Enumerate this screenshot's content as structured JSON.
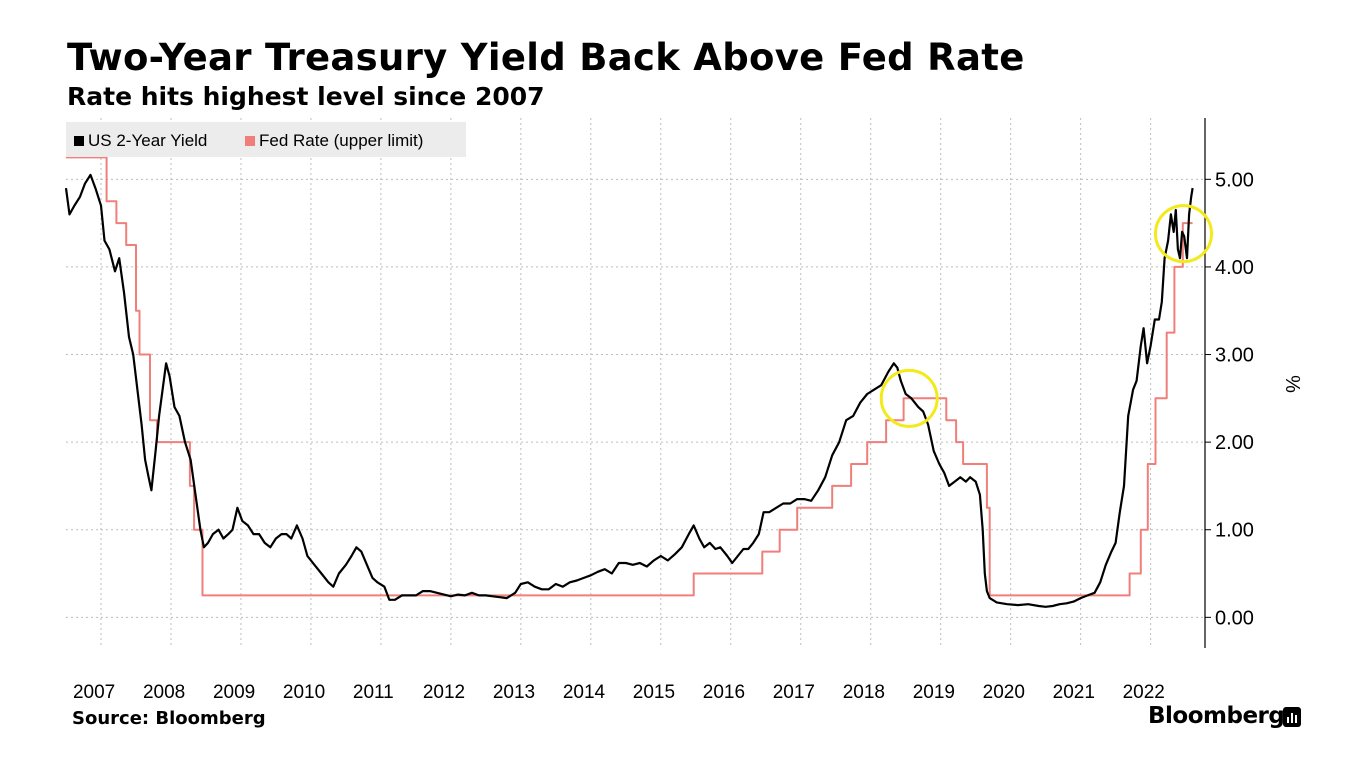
{
  "title": "Two-Year Treasury Yield Back Above Fed Rate",
  "subtitle": "Rate hits highest level since 2007",
  "source": "Source: Bloomberg",
  "brand": "Bloomberg",
  "legend": [
    {
      "name": "US 2-Year Yield",
      "color": "#000000"
    },
    {
      "name": "Fed Rate (upper limit)",
      "color": "#f07f7a"
    }
  ],
  "chart_data": {
    "type": "line",
    "ylabel": "%",
    "ylim": [
      -0.35,
      5.7
    ],
    "xlim": [
      2007.0,
      2022.92
    ],
    "yticks": [
      0,
      1,
      2,
      3,
      4,
      5
    ],
    "ytick_labels": [
      "0.00",
      "1.00",
      "2.00",
      "3.00",
      "4.00",
      "5.00"
    ],
    "xtick_labels": [
      "2007",
      "2008",
      "2009",
      "2010",
      "2011",
      "2012",
      "2013",
      "2014",
      "2015",
      "2016",
      "2017",
      "2018",
      "2019",
      "2020",
      "2021",
      "2022"
    ],
    "grid": true,
    "legend_position": "top-left",
    "series": [
      {
        "name": "US 2-Year Yield",
        "color": "#000000",
        "points": [
          [
            2007.0,
            4.9
          ],
          [
            2007.05,
            4.6
          ],
          [
            2007.12,
            4.7
          ],
          [
            2007.2,
            4.8
          ],
          [
            2007.27,
            4.95
          ],
          [
            2007.35,
            5.05
          ],
          [
            2007.42,
            4.9
          ],
          [
            2007.5,
            4.7
          ],
          [
            2007.55,
            4.3
          ],
          [
            2007.62,
            4.2
          ],
          [
            2007.7,
            3.95
          ],
          [
            2007.76,
            4.1
          ],
          [
            2007.83,
            3.7
          ],
          [
            2007.9,
            3.2
          ],
          [
            2007.96,
            3.0
          ],
          [
            2008.02,
            2.6
          ],
          [
            2008.08,
            2.2
          ],
          [
            2008.13,
            1.8
          ],
          [
            2008.18,
            1.6
          ],
          [
            2008.22,
            1.45
          ],
          [
            2008.28,
            1.9
          ],
          [
            2008.33,
            2.3
          ],
          [
            2008.38,
            2.6
          ],
          [
            2008.43,
            2.9
          ],
          [
            2008.48,
            2.75
          ],
          [
            2008.55,
            2.4
          ],
          [
            2008.62,
            2.3
          ],
          [
            2008.7,
            2.0
          ],
          [
            2008.78,
            1.8
          ],
          [
            2008.85,
            1.4
          ],
          [
            2008.92,
            1.0
          ],
          [
            2008.97,
            0.8
          ],
          [
            2009.03,
            0.85
          ],
          [
            2009.1,
            0.95
          ],
          [
            2009.18,
            1.0
          ],
          [
            2009.25,
            0.9
          ],
          [
            2009.32,
            0.95
          ],
          [
            2009.38,
            1.0
          ],
          [
            2009.45,
            1.25
          ],
          [
            2009.52,
            1.1
          ],
          [
            2009.6,
            1.05
          ],
          [
            2009.68,
            0.95
          ],
          [
            2009.76,
            0.95
          ],
          [
            2009.84,
            0.85
          ],
          [
            2009.92,
            0.8
          ],
          [
            2010.0,
            0.9
          ],
          [
            2010.08,
            0.95
          ],
          [
            2010.15,
            0.95
          ],
          [
            2010.22,
            0.9
          ],
          [
            2010.3,
            1.05
          ],
          [
            2010.38,
            0.9
          ],
          [
            2010.45,
            0.7
          ],
          [
            2010.55,
            0.6
          ],
          [
            2010.65,
            0.5
          ],
          [
            2010.75,
            0.4
          ],
          [
            2010.82,
            0.35
          ],
          [
            2010.9,
            0.5
          ],
          [
            2011.0,
            0.6
          ],
          [
            2011.08,
            0.7
          ],
          [
            2011.15,
            0.8
          ],
          [
            2011.22,
            0.75
          ],
          [
            2011.3,
            0.6
          ],
          [
            2011.38,
            0.45
          ],
          [
            2011.45,
            0.4
          ],
          [
            2011.55,
            0.35
          ],
          [
            2011.62,
            0.2
          ],
          [
            2011.7,
            0.2
          ],
          [
            2011.8,
            0.25
          ],
          [
            2011.9,
            0.25
          ],
          [
            2012.0,
            0.25
          ],
          [
            2012.1,
            0.3
          ],
          [
            2012.2,
            0.3
          ],
          [
            2012.3,
            0.28
          ],
          [
            2012.4,
            0.26
          ],
          [
            2012.5,
            0.24
          ],
          [
            2012.6,
            0.26
          ],
          [
            2012.7,
            0.25
          ],
          [
            2012.8,
            0.28
          ],
          [
            2012.9,
            0.25
          ],
          [
            2013.0,
            0.25
          ],
          [
            2013.1,
            0.24
          ],
          [
            2013.2,
            0.23
          ],
          [
            2013.3,
            0.22
          ],
          [
            2013.42,
            0.28
          ],
          [
            2013.5,
            0.38
          ],
          [
            2013.6,
            0.4
          ],
          [
            2013.7,
            0.35
          ],
          [
            2013.8,
            0.32
          ],
          [
            2013.9,
            0.32
          ],
          [
            2014.0,
            0.38
          ],
          [
            2014.1,
            0.35
          ],
          [
            2014.2,
            0.4
          ],
          [
            2014.3,
            0.42
          ],
          [
            2014.4,
            0.45
          ],
          [
            2014.5,
            0.48
          ],
          [
            2014.6,
            0.52
          ],
          [
            2014.7,
            0.55
          ],
          [
            2014.8,
            0.5
          ],
          [
            2014.9,
            0.62
          ],
          [
            2015.0,
            0.62
          ],
          [
            2015.1,
            0.6
          ],
          [
            2015.2,
            0.62
          ],
          [
            2015.3,
            0.58
          ],
          [
            2015.4,
            0.65
          ],
          [
            2015.5,
            0.7
          ],
          [
            2015.6,
            0.65
          ],
          [
            2015.7,
            0.72
          ],
          [
            2015.8,
            0.8
          ],
          [
            2015.9,
            0.95
          ],
          [
            2015.97,
            1.05
          ],
          [
            2016.05,
            0.9
          ],
          [
            2016.12,
            0.8
          ],
          [
            2016.2,
            0.85
          ],
          [
            2016.28,
            0.78
          ],
          [
            2016.35,
            0.8
          ],
          [
            2016.45,
            0.7
          ],
          [
            2016.52,
            0.62
          ],
          [
            2016.6,
            0.7
          ],
          [
            2016.68,
            0.78
          ],
          [
            2016.75,
            0.78
          ],
          [
            2016.82,
            0.85
          ],
          [
            2016.9,
            0.95
          ],
          [
            2016.97,
            1.2
          ],
          [
            2017.05,
            1.2
          ],
          [
            2017.15,
            1.25
          ],
          [
            2017.25,
            1.3
          ],
          [
            2017.35,
            1.3
          ],
          [
            2017.45,
            1.35
          ],
          [
            2017.55,
            1.35
          ],
          [
            2017.65,
            1.33
          ],
          [
            2017.75,
            1.45
          ],
          [
            2017.85,
            1.6
          ],
          [
            2017.95,
            1.85
          ],
          [
            2018.05,
            2.0
          ],
          [
            2018.15,
            2.25
          ],
          [
            2018.25,
            2.3
          ],
          [
            2018.35,
            2.45
          ],
          [
            2018.45,
            2.55
          ],
          [
            2018.55,
            2.6
          ],
          [
            2018.65,
            2.65
          ],
          [
            2018.75,
            2.8
          ],
          [
            2018.83,
            2.9
          ],
          [
            2018.88,
            2.85
          ],
          [
            2018.93,
            2.7
          ],
          [
            2019.0,
            2.55
          ],
          [
            2019.08,
            2.5
          ],
          [
            2019.18,
            2.4
          ],
          [
            2019.25,
            2.35
          ],
          [
            2019.32,
            2.2
          ],
          [
            2019.4,
            1.9
          ],
          [
            2019.48,
            1.75
          ],
          [
            2019.55,
            1.65
          ],
          [
            2019.62,
            1.5
          ],
          [
            2019.7,
            1.55
          ],
          [
            2019.78,
            1.6
          ],
          [
            2019.86,
            1.55
          ],
          [
            2019.92,
            1.6
          ],
          [
            2020.0,
            1.55
          ],
          [
            2020.06,
            1.4
          ],
          [
            2020.1,
            1.0
          ],
          [
            2020.13,
            0.5
          ],
          [
            2020.16,
            0.3
          ],
          [
            2020.2,
            0.22
          ],
          [
            2020.3,
            0.17
          ],
          [
            2020.45,
            0.15
          ],
          [
            2020.6,
            0.14
          ],
          [
            2020.75,
            0.15
          ],
          [
            2020.9,
            0.13
          ],
          [
            2021.0,
            0.12
          ],
          [
            2021.1,
            0.13
          ],
          [
            2021.2,
            0.15
          ],
          [
            2021.3,
            0.16
          ],
          [
            2021.4,
            0.18
          ],
          [
            2021.5,
            0.22
          ],
          [
            2021.6,
            0.25
          ],
          [
            2021.7,
            0.28
          ],
          [
            2021.78,
            0.4
          ],
          [
            2021.86,
            0.6
          ],
          [
            2021.94,
            0.75
          ],
          [
            2022.0,
            0.85
          ],
          [
            2022.06,
            1.2
          ],
          [
            2022.12,
            1.5
          ],
          [
            2022.18,
            2.3
          ],
          [
            2022.25,
            2.6
          ],
          [
            2022.3,
            2.7
          ],
          [
            2022.36,
            3.1
          ],
          [
            2022.4,
            3.3
          ],
          [
            2022.45,
            2.9
          ],
          [
            2022.5,
            3.1
          ],
          [
            2022.56,
            3.4
          ],
          [
            2022.62,
            3.4
          ],
          [
            2022.66,
            3.6
          ],
          [
            2022.7,
            4.1
          ],
          [
            2022.75,
            4.3
          ],
          [
            2022.79,
            4.6
          ],
          [
            2022.83,
            4.4
          ],
          [
            2022.86,
            4.65
          ],
          [
            2022.89,
            4.2
          ],
          [
            2022.92,
            4.1
          ],
          [
            2022.95,
            4.4
          ],
          [
            2022.98,
            4.35
          ],
          [
            2023.02,
            4.1
          ],
          [
            2023.05,
            4.6
          ],
          [
            2023.08,
            4.8
          ],
          [
            2023.1,
            4.9
          ]
        ]
      },
      {
        "name": "Fed Rate (upper limit)",
        "color": "#f07f7a",
        "step": true,
        "points": [
          [
            2007.0,
            5.25
          ],
          [
            2007.58,
            5.25
          ],
          [
            2007.58,
            4.75
          ],
          [
            2007.72,
            4.75
          ],
          [
            2007.72,
            4.5
          ],
          [
            2007.86,
            4.5
          ],
          [
            2007.86,
            4.25
          ],
          [
            2008.0,
            4.25
          ],
          [
            2008.0,
            3.5
          ],
          [
            2008.05,
            3.5
          ],
          [
            2008.05,
            3.0
          ],
          [
            2008.2,
            3.0
          ],
          [
            2008.2,
            2.25
          ],
          [
            2008.3,
            2.25
          ],
          [
            2008.3,
            2.0
          ],
          [
            2008.77,
            2.0
          ],
          [
            2008.77,
            1.5
          ],
          [
            2008.83,
            1.5
          ],
          [
            2008.83,
            1.0
          ],
          [
            2008.95,
            1.0
          ],
          [
            2008.95,
            0.25
          ],
          [
            2015.97,
            0.25
          ],
          [
            2015.97,
            0.5
          ],
          [
            2016.95,
            0.5
          ],
          [
            2016.95,
            0.75
          ],
          [
            2017.2,
            0.75
          ],
          [
            2017.2,
            1.0
          ],
          [
            2017.45,
            1.0
          ],
          [
            2017.45,
            1.25
          ],
          [
            2017.95,
            1.25
          ],
          [
            2017.95,
            1.5
          ],
          [
            2018.22,
            1.5
          ],
          [
            2018.22,
            1.75
          ],
          [
            2018.45,
            1.75
          ],
          [
            2018.45,
            2.0
          ],
          [
            2018.72,
            2.0
          ],
          [
            2018.72,
            2.25
          ],
          [
            2018.97,
            2.25
          ],
          [
            2018.97,
            2.5
          ],
          [
            2019.58,
            2.5
          ],
          [
            2019.58,
            2.25
          ],
          [
            2019.72,
            2.25
          ],
          [
            2019.72,
            2.0
          ],
          [
            2019.82,
            2.0
          ],
          [
            2019.82,
            1.75
          ],
          [
            2020.16,
            1.75
          ],
          [
            2020.16,
            1.25
          ],
          [
            2020.2,
            1.25
          ],
          [
            2020.2,
            0.25
          ],
          [
            2022.2,
            0.25
          ],
          [
            2022.2,
            0.5
          ],
          [
            2022.36,
            0.5
          ],
          [
            2022.36,
            1.0
          ],
          [
            2022.46,
            1.0
          ],
          [
            2022.46,
            1.75
          ],
          [
            2022.57,
            1.75
          ],
          [
            2022.57,
            2.5
          ],
          [
            2022.73,
            2.5
          ],
          [
            2022.73,
            3.25
          ],
          [
            2022.84,
            3.25
          ],
          [
            2022.84,
            4.0
          ],
          [
            2022.96,
            4.0
          ],
          [
            2022.96,
            4.5
          ],
          [
            2023.1,
            4.5
          ]
        ]
      }
    ],
    "annotations": [
      {
        "shape": "circle",
        "color": "#f2ea1a",
        "x": 2019.05,
        "y": 2.5
      },
      {
        "shape": "circle",
        "color": "#f2ea1a",
        "x": 2022.97,
        "y": 4.38
      }
    ]
  }
}
